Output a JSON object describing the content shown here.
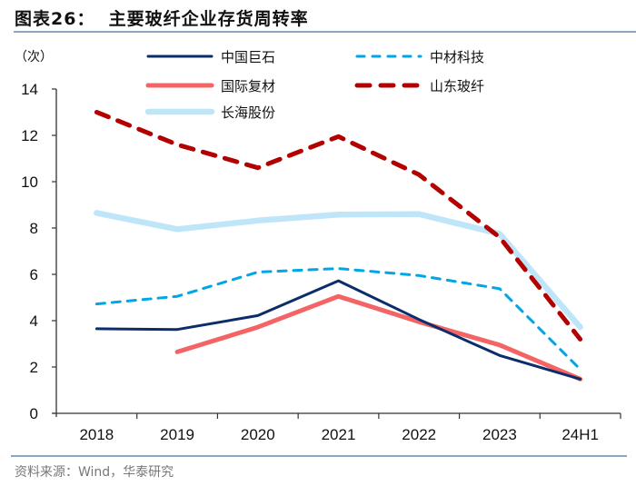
{
  "title": "图表26：  主要玻纤企业存货周转率",
  "source": "资料来源：Wind，华泰研究",
  "chart_data": {
    "type": "line",
    "title": "主要玻纤企业存货周转率",
    "ylabel": "（次）",
    "xlabel": "",
    "categories": [
      "2018",
      "2019",
      "2020",
      "2021",
      "2022",
      "2023",
      "24H1"
    ],
    "ylim": [
      0,
      14
    ],
    "yticks": [
      0,
      2,
      4,
      6,
      8,
      10,
      12,
      14
    ],
    "grid": false,
    "legend_position": "top",
    "series": [
      {
        "name": "中国巨石",
        "color": "#0b2e6b",
        "style": "solid",
        "width": "thin",
        "values": [
          3.65,
          3.62,
          4.22,
          5.72,
          4.05,
          2.5,
          1.48
        ]
      },
      {
        "name": "中材科技",
        "color": "#00a6e6",
        "style": "dashed",
        "width": "thin",
        "values": [
          4.72,
          5.05,
          6.1,
          6.25,
          5.95,
          5.38,
          1.9
        ]
      },
      {
        "name": "国际复材",
        "color": "#f46464",
        "style": "solid",
        "width": "medium",
        "values": [
          null,
          2.65,
          3.72,
          5.05,
          3.95,
          2.95,
          1.48
        ]
      },
      {
        "name": "山东玻纤",
        "color": "#b30000",
        "style": "dashed",
        "width": "medium",
        "values": [
          13.0,
          11.6,
          10.6,
          11.95,
          10.3,
          7.6,
          3.2
        ]
      },
      {
        "name": "长海股份",
        "color": "#bfe6f8",
        "style": "solid",
        "width": "thick",
        "values": [
          8.65,
          7.95,
          8.32,
          8.58,
          8.6,
          7.75,
          3.72
        ]
      }
    ]
  }
}
